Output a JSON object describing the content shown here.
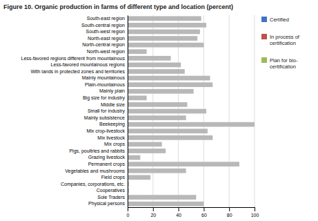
{
  "chart_data": {
    "type": "bar",
    "orientation": "horizontal",
    "title": "Figure 10. Organic production in farms of different type and location (percent)",
    "categories": [
      "South-east region",
      "South-central region",
      "South-west region",
      "North-east region",
      "North-central region",
      "North-west region",
      "Less-favored regions different from mountainous",
      "Less-favored mountainous regions",
      "With lands in protected zones and territories",
      "Mainly mountainous",
      "Plain-mountainous",
      "Mainly plain",
      "Big size for industry",
      "Middle size",
      "Small for industry",
      "Mainly subsistence",
      "Beekeeping",
      "Mix crop-livestock",
      "Mix livestock",
      "Mix crops",
      "Pigs, poultries and rabbits",
      "Grazing livestock",
      "Permanent crops",
      "Vegetables and mushrooms",
      "Field crops",
      "Companies, corporations, etc.",
      "Cooperatives",
      "Sole Traders",
      "Physical persons"
    ],
    "values": [
      58,
      62,
      57,
      55,
      60,
      15,
      34,
      42,
      45,
      65,
      67,
      52,
      15,
      47,
      62,
      46,
      100,
      63,
      67,
      27,
      30,
      10,
      88,
      46,
      18,
      1,
      1,
      54,
      60
    ],
    "color": "#b8b8b8",
    "xlim": [
      0,
      100
    ],
    "xticks": [
      0,
      20,
      40,
      60,
      80,
      100
    ],
    "grid": true,
    "legend_entries": [
      {
        "name": "Certified",
        "color": "#4472c4"
      },
      {
        "name": "In process of\ncertification",
        "color": "#c0504d"
      },
      {
        "name": "Plan for bio-\ncertification",
        "color": "#9bbb59"
      }
    ]
  }
}
